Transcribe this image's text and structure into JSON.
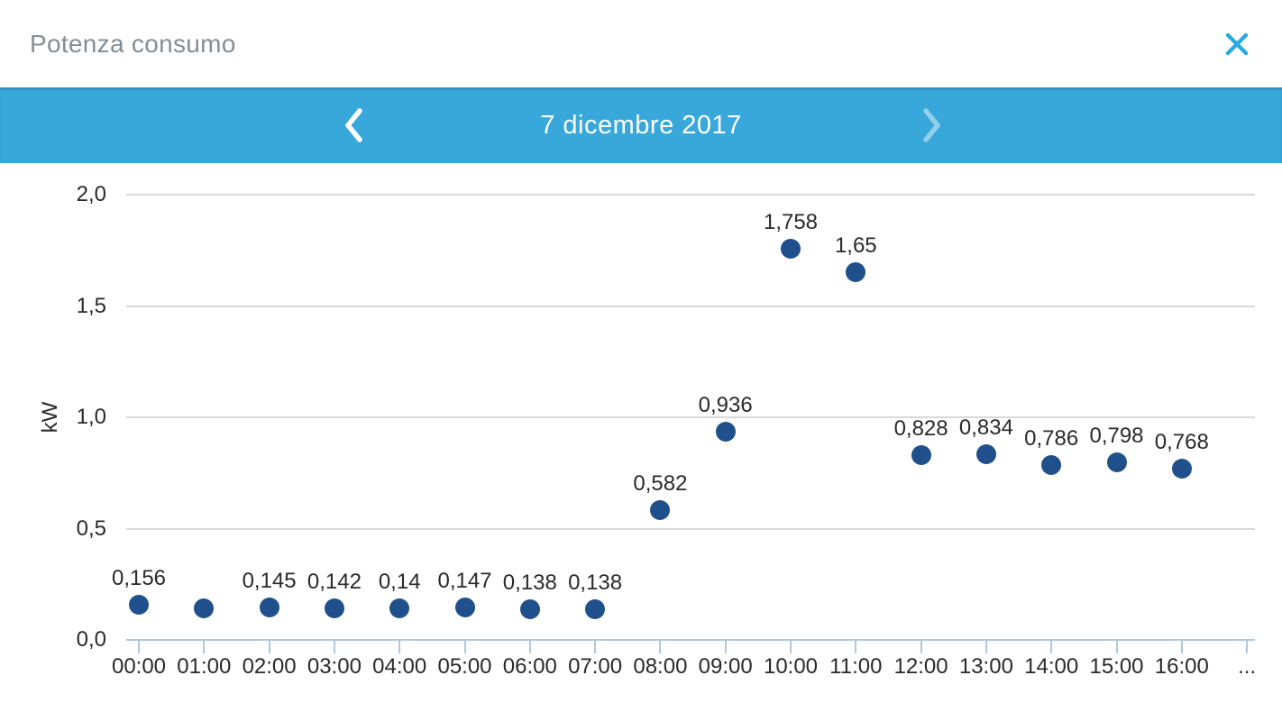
{
  "header": {
    "title": "Potenza consumo",
    "close_icon": "close-icon"
  },
  "nav": {
    "prev_icon": "chevron-left-icon",
    "date": "7 dicembre 2017",
    "next_icon": "chevron-right-icon",
    "next_disabled": true
  },
  "colors": {
    "nav_bar": "#38A8DB",
    "accent_blue": "#27A9E1",
    "title_text": "#848E96",
    "point": "#1F508C",
    "gridline": "#D9D9D9",
    "axis": "#AFC8DC",
    "text": "#2A2A2A"
  },
  "chart_data": {
    "type": "scatter",
    "title": "",
    "xlabel": "",
    "ylabel": "kW",
    "ylim": [
      0,
      2.0
    ],
    "grid": true,
    "legend": false,
    "y_ticks": [
      {
        "label": "0,0",
        "value": 0.0
      },
      {
        "label": "0,5",
        "value": 0.5
      },
      {
        "label": "1,0",
        "value": 1.0
      },
      {
        "label": "1,5",
        "value": 1.5
      },
      {
        "label": "2,0",
        "value": 2.0
      }
    ],
    "x_labels": [
      "00:00",
      "01:00",
      "02:00",
      "03:00",
      "04:00",
      "05:00",
      "06:00",
      "07:00",
      "08:00",
      "09:00",
      "10:00",
      "11:00",
      "12:00",
      "13:00",
      "14:00",
      "15:00",
      "16:00",
      "..."
    ],
    "points": [
      {
        "x": "00:00",
        "value": 0.156,
        "label": "0,156"
      },
      {
        "x": "01:00",
        "value": 0.14,
        "label": ""
      },
      {
        "x": "02:00",
        "value": 0.145,
        "label": "0,145"
      },
      {
        "x": "03:00",
        "value": 0.142,
        "label": "0,142"
      },
      {
        "x": "04:00",
        "value": 0.14,
        "label": "0,14"
      },
      {
        "x": "05:00",
        "value": 0.147,
        "label": "0,147"
      },
      {
        "x": "06:00",
        "value": 0.138,
        "label": "0,138"
      },
      {
        "x": "07:00",
        "value": 0.138,
        "label": "0,138"
      },
      {
        "x": "08:00",
        "value": 0.582,
        "label": "0,582"
      },
      {
        "x": "09:00",
        "value": 0.936,
        "label": "0,936"
      },
      {
        "x": "10:00",
        "value": 1.758,
        "label": "1,758"
      },
      {
        "x": "11:00",
        "value": 1.65,
        "label": "1,65"
      },
      {
        "x": "12:00",
        "value": 0.828,
        "label": "0,828"
      },
      {
        "x": "13:00",
        "value": 0.834,
        "label": "0,834"
      },
      {
        "x": "14:00",
        "value": 0.786,
        "label": "0,786"
      },
      {
        "x": "15:00",
        "value": 0.798,
        "label": "0,798"
      },
      {
        "x": "16:00",
        "value": 0.768,
        "label": "0,768"
      }
    ]
  }
}
